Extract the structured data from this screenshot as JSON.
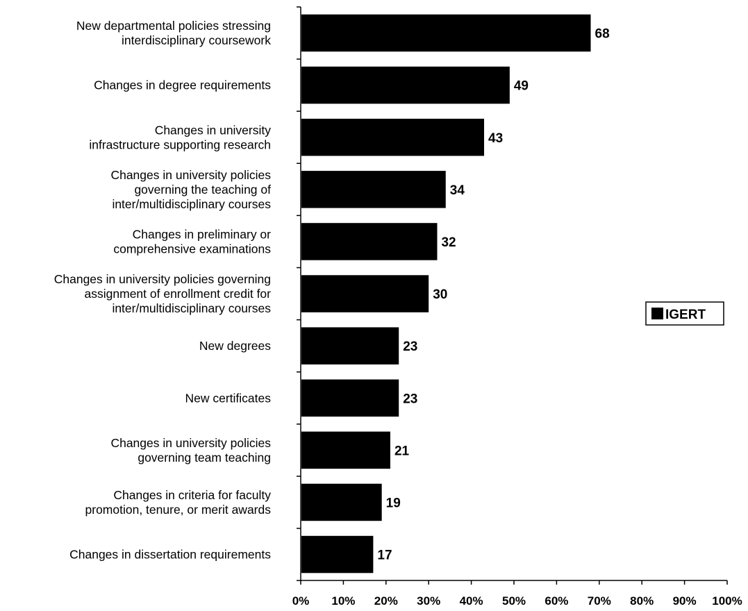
{
  "chart_data": {
    "type": "bar",
    "orientation": "horizontal",
    "categories": [
      [
        "New departmental policies stressing",
        "interdisciplinary coursework"
      ],
      [
        "Changes in degree requirements"
      ],
      [
        "Changes in university",
        "infrastructure supporting research"
      ],
      [
        "Changes in university policies",
        "governing the teaching of",
        "inter/multidisciplinary courses"
      ],
      [
        "Changes in preliminary or",
        "comprehensive examinations"
      ],
      [
        "Changes in university policies governing",
        "assignment of enrollment credit for",
        "inter/multidisciplinary courses"
      ],
      [
        "New degrees"
      ],
      [
        "New certificates"
      ],
      [
        "Changes in university policies",
        "governing team teaching"
      ],
      [
        "Changes in criteria for faculty",
        "promotion, tenure, or merit awards"
      ],
      [
        "Changes in dissertation requirements"
      ]
    ],
    "series": [
      {
        "name": "IGERT",
        "values": [
          68,
          49,
          43,
          34,
          32,
          30,
          23,
          23,
          21,
          19,
          17
        ]
      }
    ],
    "data_labels": [
      "68",
      "49",
      "43",
      "34",
      "32",
      "30",
      "23",
      "23",
      "21",
      "19",
      "17"
    ],
    "x_ticks": [
      "0%",
      "10%",
      "20%",
      "30%",
      "40%",
      "50%",
      "60%",
      "70%",
      "80%",
      "90%",
      "100%"
    ],
    "xlim": [
      0,
      100
    ],
    "title": "",
    "xlabel": "",
    "ylabel": "",
    "legend": {
      "position": "right",
      "entries": [
        "IGERT"
      ]
    },
    "grid": false,
    "colors": {
      "bar": "#000000",
      "axis": "#000000",
      "background": "#ffffff"
    }
  }
}
